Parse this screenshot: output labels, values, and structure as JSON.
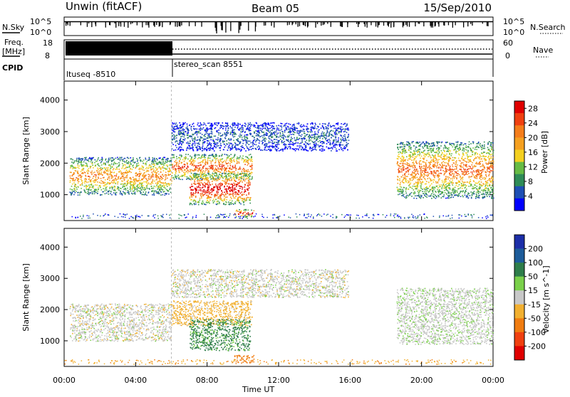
{
  "header": {
    "station": "Unwin (fitACF)",
    "beam": "Beam 05",
    "date": "15/Sep/2010"
  },
  "top_panels": {
    "nsky_label": "N.Sky",
    "nsearch_label": "N.Search",
    "nsky_ticks": [
      "10^5",
      "10^0"
    ],
    "freq_label": "Freq.",
    "freq_unit": "[MHz]",
    "freq_ticks": [
      "18",
      "8"
    ],
    "nave_label": "Nave",
    "nave_ticks": [
      "60",
      "0"
    ],
    "cpid_label": "CPID",
    "cpid_segments": [
      {
        "name": "ltuseq",
        "id": "-8510",
        "start": "00:00",
        "end": "06:00"
      },
      {
        "name": "stereo_scan",
        "id": "8551",
        "start": "06:00",
        "end": "24:00"
      }
    ]
  },
  "chart_data": [
    {
      "type": "heatmap",
      "title": "",
      "xlabel": "Time UT",
      "ylabel": "Slant Range [km]",
      "x_ticks": [
        "00:00",
        "04:00",
        "08:00",
        "12:00",
        "16:00",
        "20:00",
        "00:00"
      ],
      "x_range_hours": [
        0,
        24
      ],
      "y_ticks": [
        1000,
        2000,
        3000,
        4000
      ],
      "ylim": [
        180,
        4600
      ],
      "colorbar_label": "Power [dB]",
      "colorbar_ticks": [
        4,
        8,
        12,
        16,
        20,
        24,
        28
      ],
      "colorbar_range": [
        0,
        30
      ],
      "echo_regions": [
        {
          "t_start": 0.3,
          "t_end": 6.0,
          "range_low": 1000,
          "range_high": 2200,
          "peak_db": 20
        },
        {
          "t_start": 6.0,
          "t_end": 10.5,
          "range_low": 1500,
          "range_high": 2300,
          "peak_db": 24
        },
        {
          "t_start": 7.0,
          "t_end": 10.4,
          "range_low": 700,
          "range_high": 1700,
          "peak_db": 30
        },
        {
          "t_start": 9.5,
          "t_end": 10.6,
          "range_low": 300,
          "range_high": 550,
          "peak_db": 28
        },
        {
          "t_start": 6.0,
          "t_end": 15.9,
          "range_low": 2400,
          "range_high": 3300,
          "peak_db": 6
        },
        {
          "t_start": 18.6,
          "t_end": 24.0,
          "range_low": 900,
          "range_high": 2700,
          "peak_db": 22
        }
      ]
    },
    {
      "type": "heatmap",
      "title": "",
      "xlabel": "Time UT",
      "ylabel": "Slant Range [km]",
      "x_ticks": [
        "00:00",
        "04:00",
        "08:00",
        "12:00",
        "16:00",
        "20:00",
        "00:00"
      ],
      "x_range_hours": [
        0,
        24
      ],
      "y_ticks": [
        1000,
        2000,
        3000,
        4000
      ],
      "ylim": [
        180,
        4600
      ],
      "colorbar_label": "Velocity [m s^-1]",
      "colorbar_ticks": [
        200,
        100,
        50,
        15,
        -15,
        -50,
        -100,
        -200
      ],
      "colorbar_range": [
        -250,
        250
      ],
      "echo_regions": [
        {
          "t_start": 0.3,
          "t_end": 6.0,
          "range_low": 1000,
          "range_high": 2200,
          "vel": 0
        },
        {
          "t_start": 6.0,
          "t_end": 10.5,
          "range_low": 1500,
          "range_high": 2300,
          "vel": -30
        },
        {
          "t_start": 7.0,
          "t_end": 10.4,
          "range_low": 700,
          "range_high": 1700,
          "vel": 60
        },
        {
          "t_start": 9.5,
          "t_end": 10.6,
          "range_low": 300,
          "range_high": 550,
          "vel": -70
        },
        {
          "t_start": 6.0,
          "t_end": 15.9,
          "range_low": 2400,
          "range_high": 3300,
          "vel": 0
        },
        {
          "t_start": 18.6,
          "t_end": 24.0,
          "range_low": 900,
          "range_high": 2700,
          "vel": 5
        }
      ]
    }
  ],
  "colors": {
    "power_scale": [
      "#0000ff",
      "#1e4fb4",
      "#2e8b57",
      "#66bb44",
      "#f4d020",
      "#f5a020",
      "#f57d1a",
      "#f04010",
      "#e00000"
    ],
    "velocity_scale": [
      "#1c2ea8",
      "#1d5c9a",
      "#2e7d4a",
      "#7ad04a",
      "#c8c8c8",
      "#f2b030",
      "#f07c10",
      "#f04010",
      "#e00000"
    ]
  }
}
